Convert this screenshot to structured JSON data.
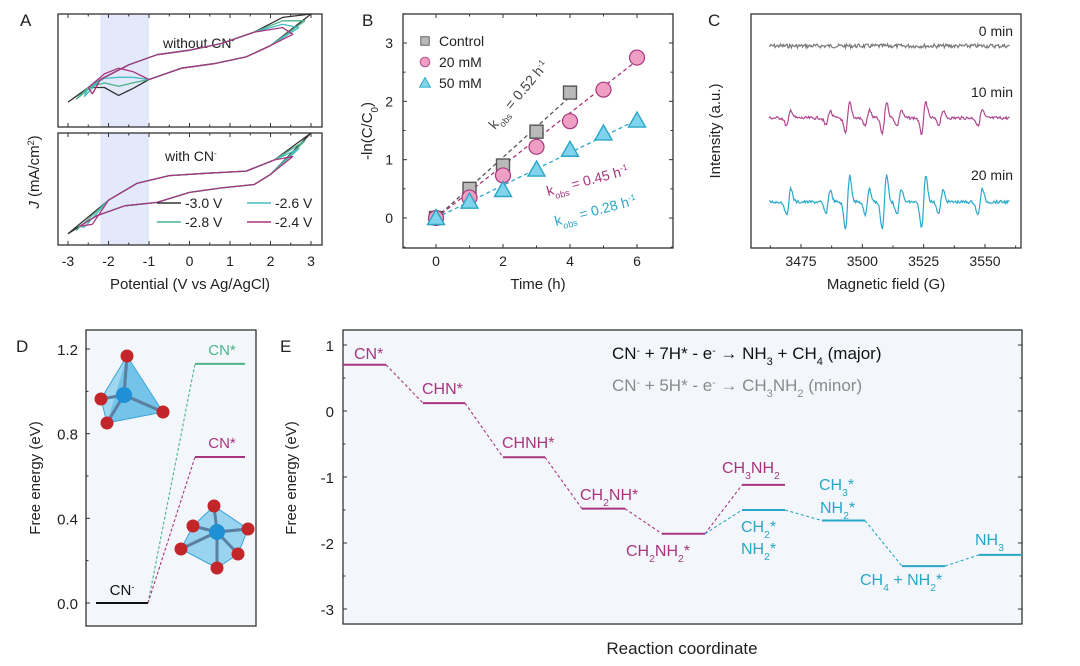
{
  "chart_data": [
    {
      "panel": "A",
      "type": "line",
      "panel_label": "A",
      "xlabel": "Potential (V vs Ag/AgCl)",
      "ylabel": "J (mA/cm²)",
      "ylabel_italic": "J",
      "ylabel_rest": " (mA/cm²)",
      "xlim": [
        -3.3,
        3.3
      ],
      "xticks": [
        -3,
        -2,
        -1,
        0,
        1,
        2,
        3
      ],
      "shaded_region": [
        -2.2,
        -1.0
      ],
      "shaded_color": "#e4e8fb",
      "subplots": [
        {
          "annotation": "without CN⁻",
          "annotation_text": "without CN",
          "annotation_sup": "-"
        },
        {
          "annotation": "with CN⁻",
          "annotation_text": "with CN",
          "annotation_sup": "-"
        }
      ],
      "series": [
        {
          "name": "-3.0 V",
          "color": "#333333",
          "lower_vertex": -3.0
        },
        {
          "name": "-2.8 V",
          "color": "#4db389",
          "lower_vertex": -2.8
        },
        {
          "name": "-2.6 V",
          "color": "#45bcc0",
          "lower_vertex": -2.6
        },
        {
          "name": "-2.4 V",
          "color": "#a8357e",
          "lower_vertex": -2.4
        }
      ],
      "legend": [
        "-3.0 V",
        "-2.6 V",
        "-2.8 V",
        "-2.4 V"
      ],
      "legend_placement": "bottom-right of lower subplot"
    },
    {
      "panel": "B",
      "type": "scatter",
      "panel_label": "B",
      "xlabel": "Time (h)",
      "ylabel": "-ln(C/C₀)",
      "ylabel_main": "-ln(C/C",
      "ylabel_sub": "0",
      "ylabel_end": ")",
      "xlim": [
        -1,
        7
      ],
      "ylim": [
        -0.5,
        3.5
      ],
      "xticks": [
        0,
        2,
        4,
        6
      ],
      "yticks": [
        0,
        1,
        2,
        3
      ],
      "series": [
        {
          "name": "Control",
          "marker": "square",
          "color": "#b9b9b9",
          "edge": "#555555",
          "x": [
            0,
            1,
            2,
            3,
            4
          ],
          "y": [
            0,
            0.5,
            0.9,
            1.48,
            2.15
          ],
          "fit_slope": 0.52,
          "fit_label": "obs = 0.52 h",
          "line_color": "#555555"
        },
        {
          "name": "20 mM",
          "marker": "circle",
          "color": "#ef9fc4",
          "edge": "#a8357e",
          "x": [
            0,
            1,
            2,
            3,
            4,
            5,
            6
          ],
          "y": [
            0,
            0.35,
            0.73,
            1.22,
            1.66,
            2.2,
            2.75
          ],
          "fit_slope": 0.45,
          "fit_label": "obs = 0.45 h",
          "line_color": "#a8357e"
        },
        {
          "name": "50 mM",
          "marker": "triangle",
          "color": "#7fd3ec",
          "edge": "#2aa6c6",
          "x": [
            0,
            1,
            2,
            3,
            4,
            5,
            6
          ],
          "y": [
            0,
            0.28,
            0.48,
            0.83,
            1.17,
            1.45,
            1.67
          ],
          "fit_slope": 0.28,
          "fit_label": "obs = 0.28 h",
          "line_color": "#2aa6c6"
        }
      ],
      "annotations": [
        {
          "text": "kobs = 0.52 h⁻¹",
          "k": "k",
          "sub": "obs",
          "mid": " = 0.52 h",
          "sup": "-1",
          "color": "#444444"
        },
        {
          "text": "kobs = 0.45 h⁻¹",
          "k": "k",
          "sub": "obs",
          "mid": " = 0.45 h",
          "sup": "-1",
          "color": "#a8357e"
        },
        {
          "text": "kobs = 0.28 h⁻¹",
          "k": "k",
          "sub": "obs",
          "mid": " = 0.28 h",
          "sup": "-1",
          "color": "#2aa6c6"
        }
      ],
      "legend_placement": "top-left"
    },
    {
      "panel": "C",
      "type": "line",
      "panel_label": "C",
      "xlabel": "Magnetic field (G)",
      "ylabel": "Intensity (a.u.)",
      "xlim": [
        3455,
        3565
      ],
      "xticks": [
        3475,
        3500,
        3525,
        3550
      ],
      "series": [
        {
          "name": "0 min",
          "color": "#7a7a7a",
          "peak_amplitude": 0
        },
        {
          "name": "10 min",
          "color": "#b0488f",
          "peak_amplitude": 0.6
        },
        {
          "name": "20 min",
          "color": "#2aa9cb",
          "peak_amplitude": 1.0
        }
      ],
      "peak_positions_G": [
        3470,
        3486,
        3494,
        3502,
        3509,
        3515,
        3525,
        3532,
        3548
      ],
      "peak_relative_heights": [
        0.5,
        0.45,
        1.0,
        0.5,
        1.0,
        0.5,
        1.0,
        0.45,
        0.5
      ]
    },
    {
      "panel": "D",
      "type": "line",
      "panel_label": "D",
      "ylabel": "Free energy (eV)",
      "ylim": [
        -0.1,
        1.3
      ],
      "yticks": [
        0.0,
        0.4,
        0.8,
        1.2
      ],
      "ytick_labels": [
        "0.0",
        "0.4",
        "0.8",
        "1.2"
      ],
      "levels": [
        {
          "label": "CN",
          "sup": "-",
          "name": "CN⁻",
          "energy": 0.0,
          "color": "#111111",
          "slot": 0
        },
        {
          "label": "CN*",
          "name": "CN* (tetrahedral)",
          "energy": 1.13,
          "color": "#4db389",
          "slot": 1
        },
        {
          "label": "CN*",
          "name": "CN* (octahedral)",
          "energy": 0.69,
          "color": "#a8357e",
          "slot": 1
        }
      ],
      "background": "#f3f7fc",
      "structures": [
        "tetrahedron",
        "octahedron"
      ]
    },
    {
      "panel": "E",
      "type": "line",
      "panel_label": "E",
      "xlabel": "Reaction coordinate",
      "ylabel": "Free energy (eV)",
      "ylim": [
        -3.25,
        1.3
      ],
      "yticks": [
        1,
        0,
        -1,
        -2,
        -3
      ],
      "background": "#f3f7fc",
      "equations": [
        {
          "text": "CN⁻ + 7H* - e⁻ → NH₃ + CH₄  (major)",
          "color": "#111111"
        },
        {
          "text": "CN⁻ + 5H* - e⁻ → CH₃NH₂ (minor)",
          "color": "#8a8a8a"
        }
      ],
      "levels": [
        {
          "id": "cn",
          "label": "CN*",
          "energy": 0.7,
          "slot": 0,
          "color": "#a8357e"
        },
        {
          "id": "chn",
          "label": "CHN*",
          "energy": 0.12,
          "slot": 1,
          "color": "#a8357e"
        },
        {
          "id": "chnh",
          "label": "CHNH*",
          "energy": -0.7,
          "slot": 2,
          "color": "#a8357e"
        },
        {
          "id": "ch2nh",
          "label": "CH₂NH*",
          "energy": -1.48,
          "slot": 3,
          "color": "#a8357e"
        },
        {
          "id": "ch2nh2",
          "label": "CH₂NH₂*",
          "energy": -1.86,
          "slot": 4,
          "color": "#a8357e"
        },
        {
          "id": "ch3nh2",
          "label": "CH₃NH₂",
          "energy": -1.12,
          "slot": 5,
          "color": "#a8357e"
        },
        {
          "id": "ch2_nh2",
          "label": "CH₂* NH₂*",
          "energy": -1.5,
          "slot": 5,
          "color": "#2aa6c6"
        },
        {
          "id": "ch3_nh2",
          "label": "CH₃* NH₂*",
          "energy": -1.66,
          "slot": 6,
          "color": "#2aa6c6"
        },
        {
          "id": "ch4_nh2",
          "label": "CH₄ + NH₂*",
          "energy": -2.35,
          "slot": 7,
          "color": "#2aa6c6"
        },
        {
          "id": "nh3",
          "label": "NH₃",
          "energy": -2.18,
          "slot": 8,
          "color": "#2aa6c6"
        }
      ],
      "connections": [
        [
          "cn",
          "chn",
          "#a8357e"
        ],
        [
          "chn",
          "chnh",
          "#a8357e"
        ],
        [
          "chnh",
          "ch2nh",
          "#a8357e"
        ],
        [
          "ch2nh",
          "ch2nh2",
          "#a8357e"
        ],
        [
          "ch2nh2",
          "ch3nh2",
          "#a8357e"
        ],
        [
          "ch2nh2",
          "ch2_nh2",
          "#2aa6c6"
        ],
        [
          "ch2_nh2",
          "ch3_nh2",
          "#2aa6c6"
        ],
        [
          "ch3_nh2",
          "ch4_nh2",
          "#2aa6c6"
        ],
        [
          "ch4_nh2",
          "nh3",
          "#2aa6c6"
        ]
      ]
    }
  ]
}
